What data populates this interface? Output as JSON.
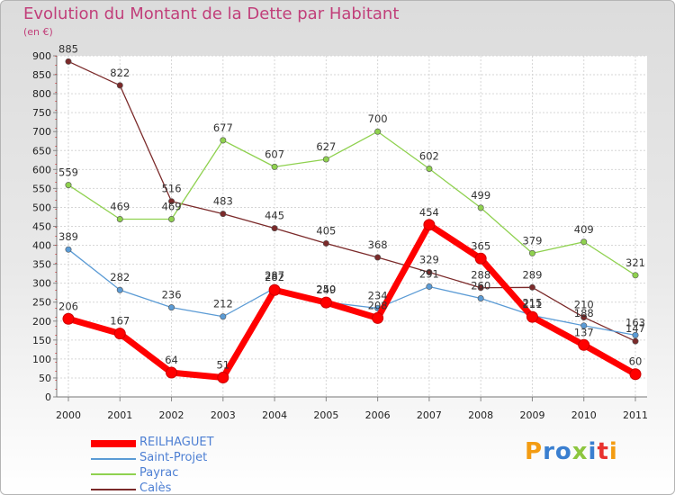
{
  "title": "Evolution du Montant de la Dette par Habitant",
  "unit": "(en €)",
  "logo": "Proxiti",
  "chart_data": {
    "type": "line",
    "title": "Evolution du Montant de la Dette par Habitant",
    "ylabel": "(en €)",
    "x": [
      "2000",
      "2001",
      "2002",
      "2003",
      "2004",
      "2005",
      "2006",
      "2007",
      "2008",
      "2009",
      "2010",
      "2011"
    ],
    "ylim": [
      0,
      900
    ],
    "yticks": [
      0,
      50,
      100,
      150,
      200,
      250,
      300,
      350,
      400,
      450,
      500,
      550,
      600,
      650,
      700,
      750,
      800,
      850,
      900
    ],
    "grid": true,
    "legend": "bottom-left",
    "series": [
      {
        "name": "REILHAGUET",
        "color": "#ff0000",
        "values": [
          206,
          167,
          64,
          51,
          282,
          249,
          208,
          454,
          365,
          211,
          137,
          60
        ]
      },
      {
        "name": "Saint-Projet",
        "color": "#5b9bd5",
        "values": [
          389,
          282,
          236,
          212,
          287,
          250,
          234,
          291,
          260,
          215,
          188,
          163
        ]
      },
      {
        "name": "Payrac",
        "color": "#8fd14f",
        "values": [
          559,
          469,
          469,
          677,
          607,
          627,
          700,
          602,
          499,
          379,
          409,
          321
        ]
      },
      {
        "name": "Calès",
        "color": "#7b2a2a",
        "values": [
          885,
          822,
          516,
          483,
          445,
          405,
          368,
          329,
          288,
          289,
          210,
          147
        ]
      }
    ]
  }
}
